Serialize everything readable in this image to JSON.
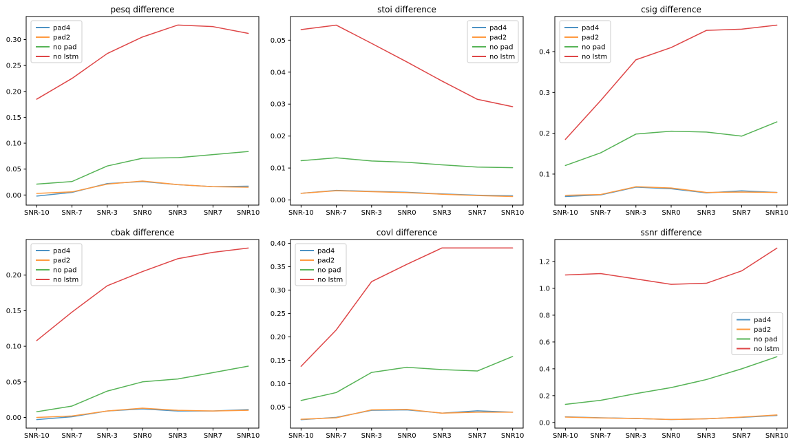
{
  "figure": {
    "background": "#ffffff",
    "text_color": "#000000",
    "axis_color": "#000000",
    "legend_border_color": "#cccccc",
    "legend_background": "#ffffff",
    "line_width": 1.5,
    "series_colors": {
      "pad4": "#4c92c3",
      "pad2": "#ff993e",
      "no pad": "#56b356",
      "no lstm": "#de4647"
    }
  },
  "chart_data": [
    {
      "type": "line",
      "title": "pesq difference",
      "xlabel": "",
      "ylabel": "",
      "grid": false,
      "categories": [
        "SNR-10",
        "SNR-7",
        "SNR-3",
        "SNR0",
        "SNR3",
        "SNR7",
        "SNR10"
      ],
      "series": [
        {
          "name": "pad4",
          "values": [
            -0.002,
            0.005,
            0.022,
            0.026,
            0.02,
            0.016,
            0.017
          ]
        },
        {
          "name": "pad2",
          "values": [
            0.003,
            0.006,
            0.021,
            0.027,
            0.02,
            0.016,
            0.015
          ]
        },
        {
          "name": "no pad",
          "values": [
            0.021,
            0.026,
            0.056,
            0.071,
            0.072,
            0.078,
            0.084
          ]
        },
        {
          "name": "no lstm",
          "values": [
            0.185,
            0.225,
            0.273,
            0.305,
            0.328,
            0.325,
            0.312
          ]
        }
      ],
      "ylim": [
        -0.0195,
        0.3445
      ],
      "yticks": [
        0.0,
        0.05,
        0.1,
        0.15,
        0.2,
        0.25,
        0.3
      ],
      "ytick_decimals": 2,
      "legend_position": "upper-left"
    },
    {
      "type": "line",
      "title": "stoi difference",
      "xlabel": "",
      "ylabel": "",
      "grid": false,
      "categories": [
        "SNR-10",
        "SNR-7",
        "SNR-3",
        "SNR0",
        "SNR3",
        "SNR7",
        "SNR10"
      ],
      "series": [
        {
          "name": "pad4",
          "values": [
            0.0021,
            0.003,
            0.0027,
            0.0024,
            0.0019,
            0.0015,
            0.0013
          ]
        },
        {
          "name": "pad2",
          "values": [
            0.0021,
            0.0029,
            0.0026,
            0.0023,
            0.0018,
            0.0014,
            0.0011
          ]
        },
        {
          "name": "no pad",
          "values": [
            0.0123,
            0.0132,
            0.0122,
            0.0118,
            0.011,
            0.0103,
            0.0101
          ]
        },
        {
          "name": "no lstm",
          "values": [
            0.0533,
            0.0547,
            0.049,
            0.0432,
            0.0372,
            0.0315,
            0.0292
          ]
        }
      ],
      "ylim": [
        -0.0016,
        0.0574
      ],
      "yticks": [
        0.0,
        0.01,
        0.02,
        0.03,
        0.04,
        0.05
      ],
      "ytick_decimals": 2,
      "legend_position": "upper-right"
    },
    {
      "type": "line",
      "title": "csig difference",
      "xlabel": "",
      "ylabel": "",
      "grid": false,
      "categories": [
        "SNR-10",
        "SNR-7",
        "SNR-3",
        "SNR0",
        "SNR3",
        "SNR7",
        "SNR10"
      ],
      "series": [
        {
          "name": "pad4",
          "values": [
            0.045,
            0.049,
            0.068,
            0.064,
            0.054,
            0.059,
            0.055
          ]
        },
        {
          "name": "pad2",
          "values": [
            0.048,
            0.05,
            0.069,
            0.066,
            0.055,
            0.056,
            0.055
          ]
        },
        {
          "name": "no pad",
          "values": [
            0.121,
            0.152,
            0.198,
            0.205,
            0.203,
            0.193,
            0.228
          ]
        },
        {
          "name": "no lstm",
          "values": [
            0.185,
            0.28,
            0.38,
            0.41,
            0.452,
            0.455,
            0.465
          ]
        }
      ],
      "ylim": [
        0.024,
        0.486
      ],
      "yticks": [
        0.1,
        0.2,
        0.3,
        0.4
      ],
      "ytick_decimals": 1,
      "legend_position": "upper-left"
    },
    {
      "type": "line",
      "title": "cbak difference",
      "xlabel": "",
      "ylabel": "",
      "grid": false,
      "categories": [
        "SNR-10",
        "SNR-7",
        "SNR-3",
        "SNR0",
        "SNR3",
        "SNR7",
        "SNR10"
      ],
      "series": [
        {
          "name": "pad4",
          "values": [
            -0.003,
            0.001,
            0.009,
            0.012,
            0.009,
            0.009,
            0.011
          ]
        },
        {
          "name": "pad2",
          "values": [
            0.0,
            0.002,
            0.009,
            0.013,
            0.01,
            0.009,
            0.01
          ]
        },
        {
          "name": "no pad",
          "values": [
            0.008,
            0.016,
            0.037,
            0.05,
            0.054,
            0.063,
            0.072
          ]
        },
        {
          "name": "no lstm",
          "values": [
            0.108,
            0.148,
            0.185,
            0.205,
            0.223,
            0.232,
            0.238
          ]
        }
      ],
      "ylim": [
        -0.015,
        0.25
      ],
      "yticks": [
        0.0,
        0.05,
        0.1,
        0.15,
        0.2
      ],
      "ytick_decimals": 2,
      "legend_position": "upper-left"
    },
    {
      "type": "line",
      "title": "covl difference",
      "xlabel": "",
      "ylabel": "",
      "grid": false,
      "categories": [
        "SNR-10",
        "SNR-7",
        "SNR-3",
        "SNR0",
        "SNR3",
        "SNR7",
        "SNR10"
      ],
      "series": [
        {
          "name": "pad4",
          "values": [
            0.023,
            0.028,
            0.043,
            0.044,
            0.037,
            0.042,
            0.039
          ]
        },
        {
          "name": "pad2",
          "values": [
            0.024,
            0.027,
            0.044,
            0.045,
            0.037,
            0.039,
            0.039
          ]
        },
        {
          "name": "no pad",
          "values": [
            0.064,
            0.081,
            0.124,
            0.135,
            0.13,
            0.127,
            0.158
          ]
        },
        {
          "name": "no lstm",
          "values": [
            0.137,
            0.215,
            0.318,
            0.355,
            0.39,
            0.39,
            0.39
          ]
        }
      ],
      "ylim": [
        0.005,
        0.408
      ],
      "yticks": [
        0.05,
        0.1,
        0.15,
        0.2,
        0.25,
        0.3,
        0.35,
        0.4
      ],
      "ytick_decimals": 2,
      "legend_position": "upper-left"
    },
    {
      "type": "line",
      "title": "ssnr difference",
      "xlabel": "",
      "ylabel": "",
      "grid": false,
      "categories": [
        "SNR-10",
        "SNR-7",
        "SNR-3",
        "SNR0",
        "SNR3",
        "SNR7",
        "SNR10"
      ],
      "series": [
        {
          "name": "pad4",
          "values": [
            0.042,
            0.035,
            0.03,
            0.022,
            0.028,
            0.038,
            0.052
          ]
        },
        {
          "name": "pad2",
          "values": [
            0.04,
            0.034,
            0.03,
            0.022,
            0.027,
            0.04,
            0.056
          ]
        },
        {
          "name": "no pad",
          "values": [
            0.135,
            0.165,
            0.215,
            0.26,
            0.32,
            0.4,
            0.49
          ]
        },
        {
          "name": "no lstm",
          "values": [
            1.1,
            1.11,
            1.07,
            1.03,
            1.038,
            1.13,
            1.3
          ]
        }
      ],
      "ylim": [
        -0.042,
        1.364
      ],
      "yticks": [
        0.0,
        0.2,
        0.4,
        0.6,
        0.8,
        1.0,
        1.2
      ],
      "ytick_decimals": 1,
      "legend_position": "center-right"
    }
  ]
}
